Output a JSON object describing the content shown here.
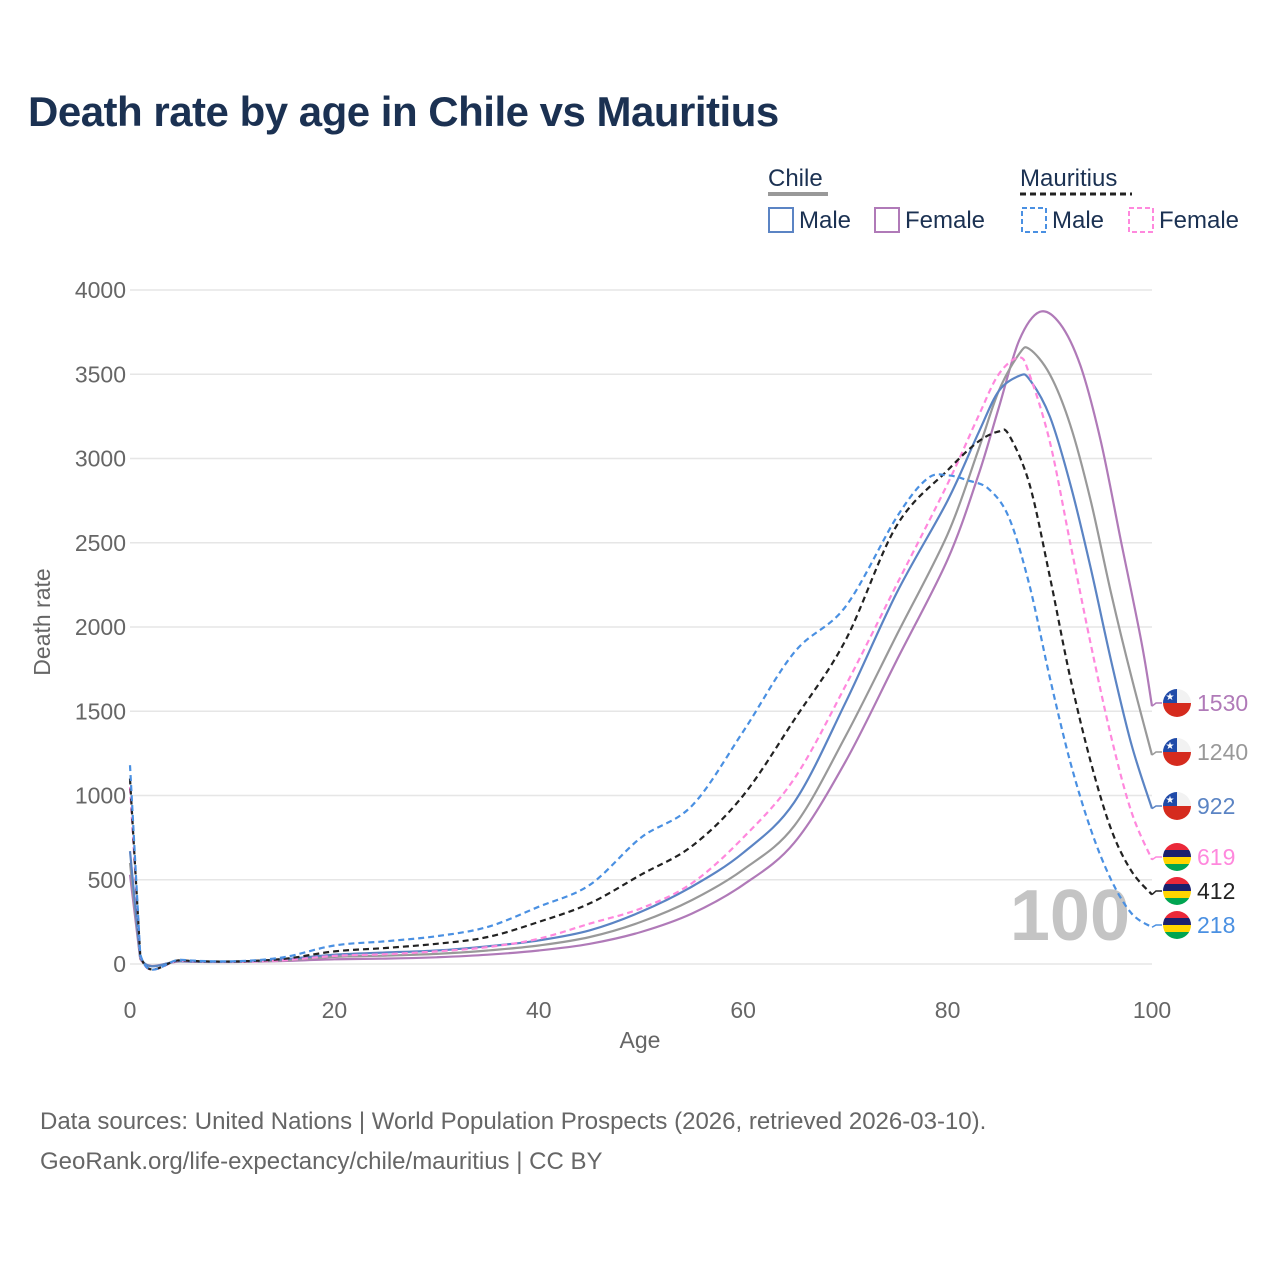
{
  "title": "Death rate by age in Chile vs Mauritius",
  "source_line1": "Data sources: United Nations | World Population Prospects (2026, retrieved 2026-03-10).",
  "source_line2": "GeoRank.org/life-expectancy/chile/mauritius | CC BY",
  "chart_data": {
    "type": "line",
    "title": "Death rate by age in Chile vs Mauritius",
    "xlabel": "Age",
    "ylabel": "Death rate",
    "xlim": [
      0,
      100
    ],
    "ylim": [
      0,
      4000
    ],
    "xticks": [
      0,
      20,
      40,
      60,
      80,
      100
    ],
    "yticks": [
      0,
      500,
      1000,
      1500,
      2000,
      2500,
      3000,
      3500,
      4000
    ],
    "grid": true,
    "legend_position": "top-right",
    "watermark": "100",
    "legend": {
      "groups": [
        {
          "name": "Chile",
          "line": "solid",
          "items": [
            "Male",
            "Female"
          ]
        },
        {
          "name": "Mauritius",
          "line": "dashed",
          "items": [
            "Male",
            "Female"
          ]
        }
      ]
    },
    "series": [
      {
        "name": "Chile Female",
        "country": "Chile",
        "dash": false,
        "color": "#b07ab8",
        "end_label": "1530",
        "points": [
          [
            0,
            530
          ],
          [
            1,
            30
          ],
          [
            5,
            15
          ],
          [
            10,
            12
          ],
          [
            15,
            18
          ],
          [
            20,
            28
          ],
          [
            25,
            32
          ],
          [
            30,
            40
          ],
          [
            35,
            55
          ],
          [
            40,
            80
          ],
          [
            45,
            120
          ],
          [
            50,
            190
          ],
          [
            55,
            300
          ],
          [
            60,
            470
          ],
          [
            65,
            720
          ],
          [
            70,
            1200
          ],
          [
            75,
            1800
          ],
          [
            80,
            2400
          ],
          [
            83,
            2900
          ],
          [
            85,
            3300
          ],
          [
            87,
            3700
          ],
          [
            89,
            3870
          ],
          [
            91,
            3800
          ],
          [
            93,
            3550
          ],
          [
            95,
            3100
          ],
          [
            97,
            2500
          ],
          [
            99,
            1900
          ],
          [
            100,
            1530
          ]
        ]
      },
      {
        "name": "Chile Total",
        "country": "Chile",
        "dash": false,
        "color": "#999999",
        "end_label": "1240",
        "points": [
          [
            0,
            600
          ],
          [
            1,
            35
          ],
          [
            5,
            16
          ],
          [
            10,
            13
          ],
          [
            15,
            22
          ],
          [
            20,
            42
          ],
          [
            25,
            50
          ],
          [
            30,
            60
          ],
          [
            35,
            80
          ],
          [
            40,
            110
          ],
          [
            45,
            160
          ],
          [
            50,
            250
          ],
          [
            55,
            380
          ],
          [
            60,
            560
          ],
          [
            65,
            820
          ],
          [
            70,
            1350
          ],
          [
            75,
            1950
          ],
          [
            80,
            2550
          ],
          [
            83,
            3050
          ],
          [
            85,
            3400
          ],
          [
            87,
            3620
          ],
          [
            88,
            3650
          ],
          [
            90,
            3500
          ],
          [
            92,
            3200
          ],
          [
            94,
            2750
          ],
          [
            96,
            2200
          ],
          [
            98,
            1700
          ],
          [
            100,
            1240
          ]
        ]
      },
      {
        "name": "Chile Male",
        "country": "Chile",
        "dash": false,
        "color": "#5b84c4",
        "end_label": "922",
        "points": [
          [
            0,
            670
          ],
          [
            1,
            40
          ],
          [
            5,
            17
          ],
          [
            10,
            14
          ],
          [
            15,
            28
          ],
          [
            20,
            55
          ],
          [
            25,
            68
          ],
          [
            30,
            80
          ],
          [
            35,
            105
          ],
          [
            40,
            140
          ],
          [
            45,
            200
          ],
          [
            50,
            310
          ],
          [
            55,
            460
          ],
          [
            60,
            660
          ],
          [
            65,
            960
          ],
          [
            70,
            1550
          ],
          [
            75,
            2200
          ],
          [
            80,
            2750
          ],
          [
            83,
            3150
          ],
          [
            85,
            3400
          ],
          [
            87,
            3490
          ],
          [
            88,
            3470
          ],
          [
            90,
            3250
          ],
          [
            92,
            2850
          ],
          [
            94,
            2350
          ],
          [
            96,
            1800
          ],
          [
            98,
            1300
          ],
          [
            100,
            922
          ]
        ]
      },
      {
        "name": "Mauritius Female",
        "country": "Mauritius",
        "dash": true,
        "color": "#ff88dd",
        "end_label": "619",
        "points": [
          [
            0,
            1050
          ],
          [
            1,
            50
          ],
          [
            5,
            20
          ],
          [
            10,
            14
          ],
          [
            15,
            22
          ],
          [
            20,
            48
          ],
          [
            25,
            58
          ],
          [
            30,
            75
          ],
          [
            35,
            100
          ],
          [
            40,
            150
          ],
          [
            45,
            240
          ],
          [
            50,
            330
          ],
          [
            55,
            480
          ],
          [
            60,
            750
          ],
          [
            65,
            1100
          ],
          [
            70,
            1650
          ],
          [
            75,
            2250
          ],
          [
            80,
            2850
          ],
          [
            83,
            3250
          ],
          [
            85,
            3500
          ],
          [
            87,
            3600
          ],
          [
            88,
            3500
          ],
          [
            90,
            3100
          ],
          [
            92,
            2500
          ],
          [
            94,
            1900
          ],
          [
            96,
            1350
          ],
          [
            98,
            900
          ],
          [
            100,
            619
          ]
        ]
      },
      {
        "name": "Mauritius Total",
        "country": "Mauritius",
        "dash": true,
        "color": "#222222",
        "end_label": "412",
        "points": [
          [
            0,
            1100
          ],
          [
            1,
            55
          ],
          [
            5,
            22
          ],
          [
            10,
            15
          ],
          [
            15,
            30
          ],
          [
            20,
            75
          ],
          [
            25,
            95
          ],
          [
            30,
            120
          ],
          [
            35,
            160
          ],
          [
            40,
            250
          ],
          [
            45,
            360
          ],
          [
            50,
            530
          ],
          [
            55,
            700
          ],
          [
            60,
            1000
          ],
          [
            65,
            1450
          ],
          [
            70,
            1920
          ],
          [
            75,
            2600
          ],
          [
            80,
            2930
          ],
          [
            83,
            3100
          ],
          [
            85,
            3160
          ],
          [
            86,
            3140
          ],
          [
            88,
            2850
          ],
          [
            90,
            2300
          ],
          [
            92,
            1700
          ],
          [
            94,
            1200
          ],
          [
            96,
            800
          ],
          [
            98,
            550
          ],
          [
            100,
            412
          ]
        ]
      },
      {
        "name": "Mauritius Male",
        "country": "Mauritius",
        "dash": true,
        "color": "#4a90e2",
        "end_label": "218",
        "points": [
          [
            0,
            1180
          ],
          [
            1,
            60
          ],
          [
            5,
            25
          ],
          [
            10,
            16
          ],
          [
            15,
            40
          ],
          [
            20,
            110
          ],
          [
            25,
            135
          ],
          [
            30,
            165
          ],
          [
            35,
            220
          ],
          [
            40,
            340
          ],
          [
            45,
            470
          ],
          [
            50,
            750
          ],
          [
            55,
            940
          ],
          [
            60,
            1380
          ],
          [
            65,
            1850
          ],
          [
            70,
            2120
          ],
          [
            75,
            2650
          ],
          [
            78,
            2880
          ],
          [
            80,
            2900
          ],
          [
            82,
            2870
          ],
          [
            84,
            2820
          ],
          [
            86,
            2650
          ],
          [
            88,
            2250
          ],
          [
            90,
            1700
          ],
          [
            92,
            1200
          ],
          [
            94,
            800
          ],
          [
            96,
            500
          ],
          [
            98,
            300
          ],
          [
            100,
            218
          ]
        ]
      }
    ]
  }
}
